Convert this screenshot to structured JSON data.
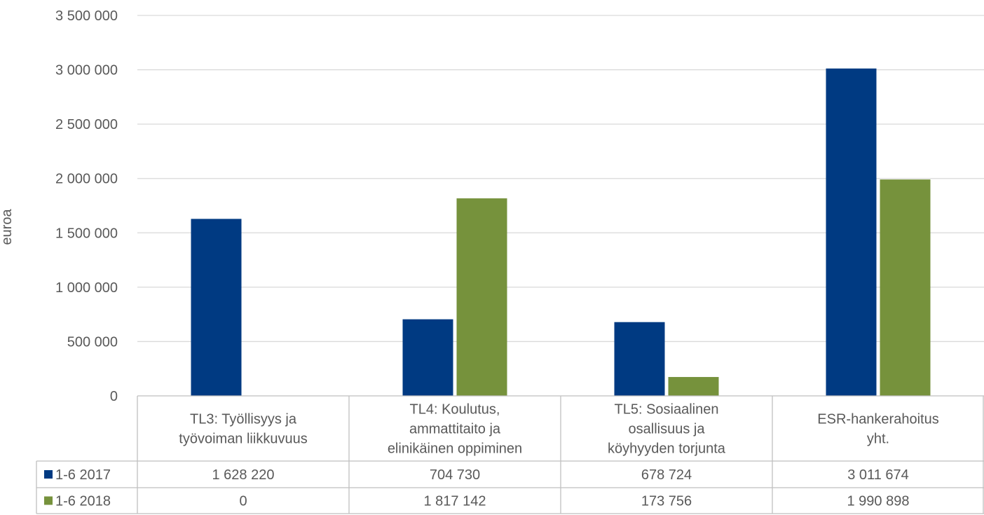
{
  "chart_data": {
    "type": "bar",
    "ylabel": "euroa",
    "ylim": [
      0,
      3500000
    ],
    "yticks": [
      0,
      500000,
      1000000,
      1500000,
      2000000,
      2500000,
      3000000,
      3500000
    ],
    "ytick_labels": [
      "0",
      "500 000",
      "1 000 000",
      "1 500 000",
      "2 000 000",
      "2 500 000",
      "3 000 000",
      "3 500 000"
    ],
    "grid": true,
    "legend_placement": "data-table-left",
    "categories": [
      [
        "TL3: Työllisyys ja",
        "työvoiman liikkuvuus"
      ],
      [
        "TL4: Koulutus,",
        "ammattitaito ja",
        "elinikäinen oppiminen"
      ],
      [
        "TL5: Sosiaalinen",
        "osallisuus ja",
        "köyhyyden torjunta"
      ],
      [
        "ESR-hankerahoitus",
        "yht."
      ]
    ],
    "series": [
      {
        "name": "1-6 2017",
        "color": "#003A82",
        "values": [
          1628220,
          704730,
          678724,
          3011674
        ],
        "value_labels": [
          "1 628 220",
          "704 730",
          "678 724",
          "3 011 674"
        ]
      },
      {
        "name": "1-6 2018",
        "color": "#76923C",
        "values": [
          0,
          1817142,
          173756,
          1990898
        ],
        "value_labels": [
          "0",
          "1 817 142",
          "173 756",
          "1 990 898"
        ]
      }
    ]
  }
}
